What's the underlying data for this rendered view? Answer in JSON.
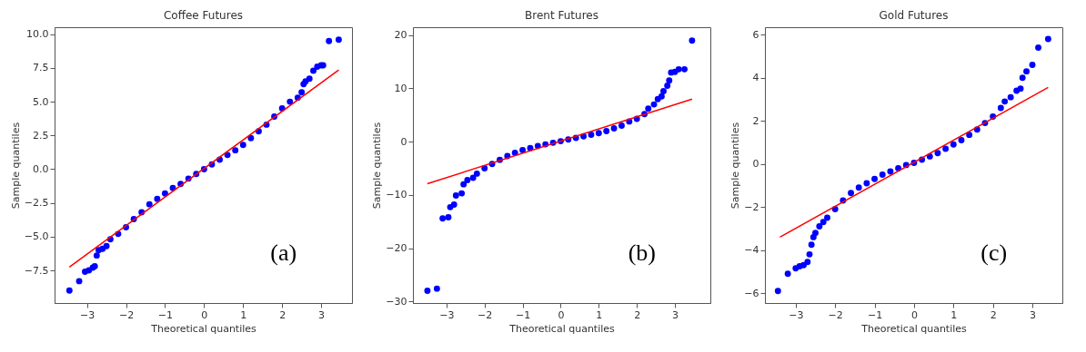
{
  "chart_data": [
    {
      "type": "scatter",
      "title": "Coffee Futures",
      "xlabel": "Theoretical quantiles",
      "ylabel": "Sample quantiles",
      "annotations": [
        "(a)"
      ],
      "xlim": [
        -3.83,
        3.79
      ],
      "ylim": [
        -9.92,
        10.52
      ],
      "xticks": [
        {
          "value": -3,
          "label": "−3"
        },
        {
          "value": -2,
          "label": "−2"
        },
        {
          "value": -1,
          "label": "−1"
        },
        0,
        1,
        2,
        3
      ],
      "yticks": [
        {
          "value": -7.5,
          "label": "−7.5"
        },
        {
          "value": -5,
          "label": "−5.0"
        },
        {
          "value": -2.5,
          "label": "−2.5"
        },
        {
          "value": 0,
          "label": "0.0"
        },
        {
          "value": 2.5,
          "label": "2.5"
        },
        {
          "value": 5,
          "label": "5.0"
        },
        {
          "value": 7.5,
          "label": "7.5"
        },
        {
          "value": 10,
          "label": "10.0"
        }
      ],
      "series": [
        {
          "marker": "circle",
          "color": "#0000ff",
          "x": [
            -3.45,
            -3.2,
            -3.05,
            -2.95,
            -2.85,
            -2.8,
            -2.75,
            -2.7,
            -2.6,
            -2.5,
            -2.4,
            -2.2,
            -2.0,
            -1.8,
            -1.6,
            -1.4,
            -1.2,
            -1.0,
            -0.8,
            -0.6,
            -0.4,
            -0.2,
            0,
            0.2,
            0.4,
            0.6,
            0.8,
            1.0,
            1.2,
            1.4,
            1.6,
            1.8,
            2.0,
            2.2,
            2.4,
            2.5,
            2.55,
            2.6,
            2.7,
            2.8,
            2.9,
            3.0,
            3.05,
            3.2,
            3.45
          ],
          "values": [
            -9.0,
            -8.3,
            -7.6,
            -7.5,
            -7.3,
            -7.2,
            -6.4,
            -6.0,
            -5.9,
            -5.7,
            -5.2,
            -4.8,
            -4.3,
            -3.7,
            -3.2,
            -2.6,
            -2.2,
            -1.8,
            -1.4,
            -1.1,
            -0.7,
            -0.35,
            0,
            0.35,
            0.7,
            1.05,
            1.4,
            1.8,
            2.3,
            2.8,
            3.3,
            3.9,
            4.5,
            5.0,
            5.3,
            5.7,
            6.3,
            6.5,
            6.7,
            7.3,
            7.6,
            7.7,
            7.7,
            9.5,
            9.6
          ]
        },
        {
          "type": "line",
          "color": "#ff0000",
          "x": [
            -3.45,
            3.45
          ],
          "values": [
            -7.25,
            7.35
          ]
        }
      ]
    },
    {
      "type": "scatter",
      "title": "Brent Futures",
      "xlabel": "Theoretical quantiles",
      "ylabel": "Sample quantiles",
      "annotations": [
        "(b)"
      ],
      "xlim": [
        -3.88,
        3.93
      ],
      "ylim": [
        -30.3,
        21.5
      ],
      "xticks": [
        {
          "value": -3,
          "label": "−3"
        },
        {
          "value": -2,
          "label": "−2"
        },
        {
          "value": -1,
          "label": "−1"
        },
        0,
        1,
        2,
        3
      ],
      "yticks": [
        {
          "value": -30,
          "label": "−30"
        },
        {
          "value": -20,
          "label": "−20"
        },
        {
          "value": -10,
          "label": "−10"
        },
        0,
        10,
        20
      ],
      "series": [
        {
          "marker": "circle",
          "color": "#0000ff",
          "x": [
            -3.5,
            -3.25,
            -3.1,
            -2.95,
            -2.9,
            -2.8,
            -2.75,
            -2.6,
            -2.55,
            -2.45,
            -2.3,
            -2.2,
            -2.0,
            -1.8,
            -1.6,
            -1.4,
            -1.2,
            -1.0,
            -0.8,
            -0.6,
            -0.4,
            -0.2,
            0,
            0.2,
            0.4,
            0.6,
            0.8,
            1.0,
            1.2,
            1.4,
            1.6,
            1.8,
            2.0,
            2.2,
            2.3,
            2.45,
            2.55,
            2.65,
            2.7,
            2.8,
            2.85,
            2.9,
            3.0,
            3.1,
            3.25,
            3.45
          ],
          "values": [
            -28,
            -27.6,
            -14.4,
            -14.2,
            -12.3,
            -11.8,
            -10.1,
            -9.7,
            -8.0,
            -7.2,
            -6.8,
            -6.0,
            -5.0,
            -4.2,
            -3.4,
            -2.7,
            -2.1,
            -1.6,
            -1.2,
            -0.8,
            -0.5,
            -0.2,
            0.1,
            0.4,
            0.7,
            1.0,
            1.3,
            1.6,
            2.0,
            2.5,
            3.0,
            3.8,
            4.3,
            5.2,
            6.2,
            7.0,
            8.0,
            8.5,
            9.5,
            10.5,
            11.5,
            13.0,
            13.1,
            13.6,
            13.6,
            19.0
          ]
        },
        {
          "type": "line",
          "color": "#ff0000",
          "x": [
            -3.5,
            3.45
          ],
          "values": [
            -7.9,
            8.0
          ]
        }
      ]
    },
    {
      "type": "scatter",
      "title": "Gold Futures",
      "xlabel": "Theoretical quantiles",
      "ylabel": "Sample quantiles",
      "annotations": [
        "(c)"
      ],
      "xlim": [
        -3.78,
        3.76
      ],
      "ylim": [
        -6.46,
        6.35
      ],
      "xticks": [
        {
          "value": -3,
          "label": "−3"
        },
        {
          "value": -2,
          "label": "−2"
        },
        {
          "value": -1,
          "label": "−1"
        },
        0,
        1,
        2,
        3
      ],
      "yticks": [
        {
          "value": -6,
          "label": "−6"
        },
        {
          "value": -4,
          "label": "−4"
        },
        {
          "value": -2,
          "label": "−2"
        },
        0,
        2,
        4,
        6
      ],
      "series": [
        {
          "marker": "circle",
          "color": "#0000ff",
          "x": [
            -3.45,
            -3.2,
            -3.0,
            -2.9,
            -2.8,
            -2.7,
            -2.65,
            -2.6,
            -2.55,
            -2.5,
            -2.4,
            -2.3,
            -2.2,
            -2.0,
            -1.8,
            -1.6,
            -1.4,
            -1.2,
            -1.0,
            -0.8,
            -0.6,
            -0.4,
            -0.2,
            0,
            0.2,
            0.4,
            0.6,
            0.8,
            1.0,
            1.2,
            1.4,
            1.6,
            1.8,
            2.0,
            2.2,
            2.3,
            2.45,
            2.6,
            2.7,
            2.75,
            2.85,
            3.0,
            3.15,
            3.4
          ],
          "values": [
            -5.9,
            -5.1,
            -4.85,
            -4.75,
            -4.7,
            -4.55,
            -4.2,
            -3.75,
            -3.4,
            -3.2,
            -2.9,
            -2.7,
            -2.5,
            -2.1,
            -1.7,
            -1.35,
            -1.1,
            -0.9,
            -0.7,
            -0.5,
            -0.35,
            -0.2,
            -0.05,
            0.05,
            0.2,
            0.35,
            0.5,
            0.7,
            0.9,
            1.1,
            1.35,
            1.6,
            1.9,
            2.2,
            2.6,
            2.9,
            3.1,
            3.4,
            3.5,
            4.0,
            4.3,
            4.6,
            5.4,
            5.8
          ]
        },
        {
          "type": "line",
          "color": "#ff0000",
          "x": [
            -3.4,
            3.4
          ],
          "values": [
            -3.4,
            3.55
          ]
        }
      ]
    }
  ]
}
